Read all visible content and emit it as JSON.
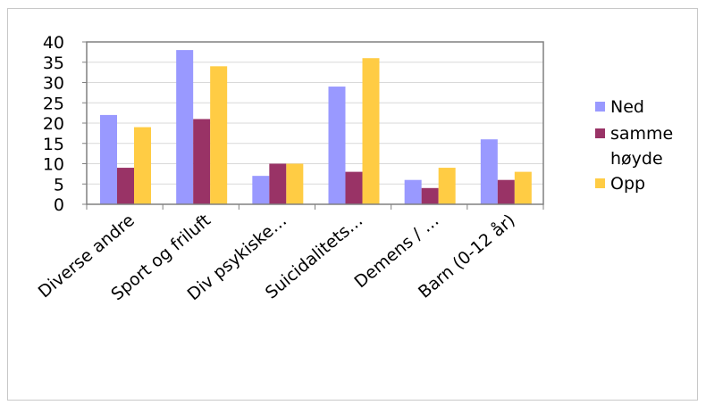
{
  "chart_data": {
    "type": "bar",
    "title": "",
    "xlabel": "",
    "ylabel": "",
    "ylim": [
      0,
      40
    ],
    "yticks": [
      0,
      5,
      10,
      15,
      20,
      25,
      30,
      35,
      40
    ],
    "grid": true,
    "legend_position": "right",
    "categories": [
      "Diverse andre",
      "Sport og friluft",
      "Div psykiske…",
      "Suicidalitets…",
      "Demens / …",
      "Barn (0-12 år)"
    ],
    "series": [
      {
        "name": "Ned",
        "color": "#9999ff",
        "values": [
          22,
          38,
          7,
          29,
          6,
          16
        ]
      },
      {
        "name": "samme høyde",
        "color": "#993366",
        "values": [
          9,
          21,
          10,
          8,
          4,
          6
        ]
      },
      {
        "name": "Opp",
        "color": "#ffcc44",
        "values": [
          19,
          34,
          10,
          36,
          9,
          8
        ]
      }
    ]
  }
}
